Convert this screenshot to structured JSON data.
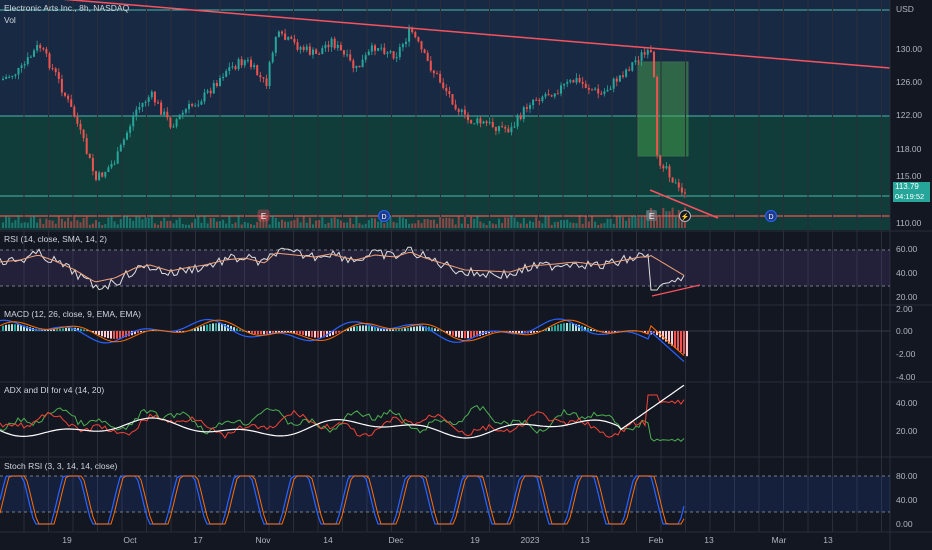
{
  "header": {
    "symbol_line": "Electronic Arts Inc., 8h, NASDAQ",
    "volume_label": "Vol",
    "currency": "USD"
  },
  "last_price": {
    "value": "113.79",
    "countdown": "04:19:52"
  },
  "price_axis": [
    "130.00",
    "126.00",
    "122.00",
    "118.00",
    "115.00",
    "110.00"
  ],
  "indicators": {
    "rsi": {
      "title": "RSI (14, close, SMA, 14, 2)",
      "ticks": [
        "60.00",
        "40.00",
        "20.00"
      ]
    },
    "macd": {
      "title": "MACD (12, 26, close, 9, EMA, EMA)",
      "ticks": [
        "2.00",
        "0.00",
        "-2.00",
        "-4.00"
      ]
    },
    "adx": {
      "title": "ADX and DI for v4 (14, 20)",
      "ticks": [
        "40.00",
        "20.00"
      ]
    },
    "stoch": {
      "title": "Stoch RSI (3, 3, 14, 14, close)",
      "ticks": [
        "80.00",
        "40.00",
        "0.00"
      ]
    }
  },
  "time_axis": [
    "19",
    "Oct",
    "17",
    "Nov",
    "14",
    "Dec",
    "19",
    "2023",
    "13",
    "Feb",
    "13",
    "Mar",
    "13"
  ],
  "event_markers": [
    "E",
    "D",
    "E",
    "D"
  ],
  "colors": {
    "bg": "#131722",
    "up": "#26a69a",
    "down": "#ef5350",
    "trendline": "#f7525f",
    "zone": "#26a69a"
  }
}
